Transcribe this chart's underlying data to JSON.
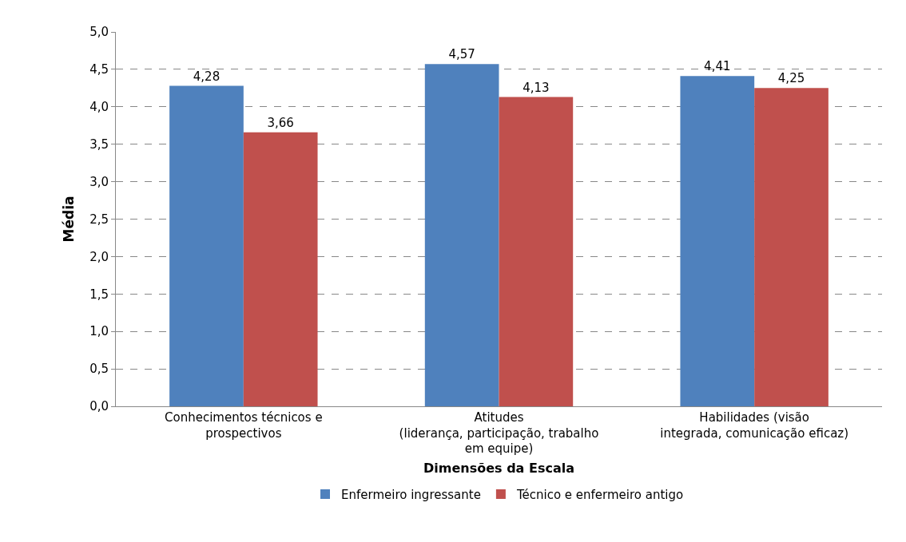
{
  "chart_data": {
    "type": "bar",
    "xlabel": "Dimensões da Escala",
    "ylabel": "Média",
    "categories": [
      "Conhecimentos técnicos e\nprospectivos",
      "Atitudes\n(liderança, participação, trabalho\nem equipe)",
      "Habilidades (visão\nintegrada, comunicação eficaz)"
    ],
    "series": [
      {
        "name": "Enfermeiro ingressante",
        "color": "#4f81bd",
        "values": [
          4.28,
          4.57,
          4.41
        ],
        "value_labels": [
          "4,28",
          "4,57",
          "4,41"
        ]
      },
      {
        "name": "Técnico e enfermeiro antigo",
        "color": "#c0504d",
        "values": [
          3.66,
          4.13,
          4.25
        ],
        "value_labels": [
          "3,66",
          "4,13",
          "4,25"
        ]
      }
    ],
    "ylim": [
      0,
      5
    ],
    "yticks": [
      {
        "value": 0,
        "label": "0,0"
      },
      {
        "value": 0.5,
        "label": "0,5"
      },
      {
        "value": 1,
        "label": "1,0"
      },
      {
        "value": 1.5,
        "label": "1,5"
      },
      {
        "value": 2,
        "label": "2,0"
      },
      {
        "value": 2.5,
        "label": "2,5"
      },
      {
        "value": 3,
        "label": "3,0"
      },
      {
        "value": 3.5,
        "label": "3,5"
      },
      {
        "value": 4,
        "label": "4,0"
      },
      {
        "value": 4.5,
        "label": "4,5"
      },
      {
        "value": 5,
        "label": "5,0"
      }
    ],
    "grid": "y",
    "legend": "bottom"
  }
}
